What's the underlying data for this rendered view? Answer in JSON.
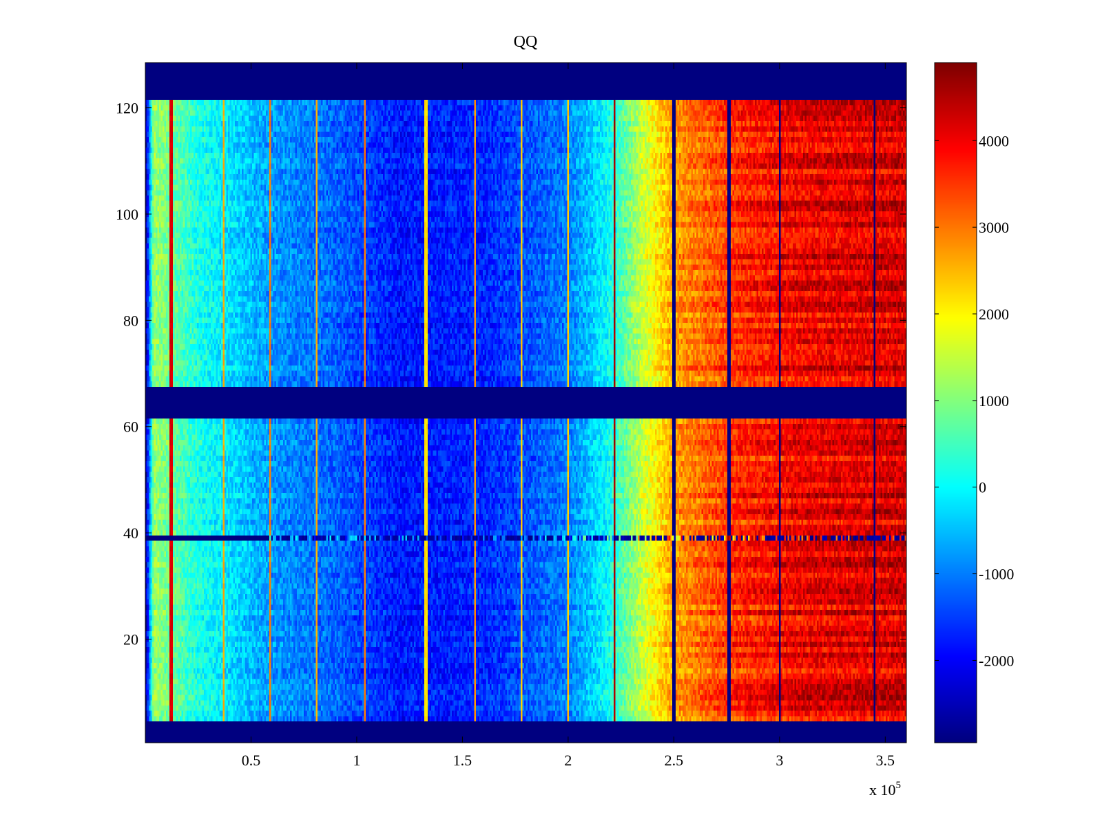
{
  "chart_data": {
    "type": "heatmap",
    "title": "QQ",
    "xlabel": "",
    "ylabel": "",
    "xlim": [
      0,
      360000
    ],
    "ylim": [
      1,
      128
    ],
    "x_multiplier_label": "x 10",
    "x_multiplier_exponent": "5",
    "x_ticks": [
      {
        "value": 50000,
        "label": "0.5"
      },
      {
        "value": 100000,
        "label": "1"
      },
      {
        "value": 150000,
        "label": "1.5"
      },
      {
        "value": 200000,
        "label": "2"
      },
      {
        "value": 250000,
        "label": "2.5"
      },
      {
        "value": 300000,
        "label": "3"
      },
      {
        "value": 350000,
        "label": "3.5"
      }
    ],
    "y_ticks": [
      {
        "value": 20,
        "label": "20"
      },
      {
        "value": 40,
        "label": "40"
      },
      {
        "value": 60,
        "label": "60"
      },
      {
        "value": 80,
        "label": "80"
      },
      {
        "value": 100,
        "label": "100"
      },
      {
        "value": 120,
        "label": "120"
      }
    ],
    "colorbar": {
      "colormap": "jet",
      "clim": [
        -2950,
        4900
      ],
      "ticks": [
        {
          "value": -2000,
          "label": "-2000"
        },
        {
          "value": -1000,
          "label": "-1000"
        },
        {
          "value": 0,
          "label": "0"
        },
        {
          "value": 1000,
          "label": "1000"
        },
        {
          "value": 2000,
          "label": "2000"
        },
        {
          "value": 3000,
          "label": "3000"
        },
        {
          "value": 4000,
          "label": "4000"
        }
      ]
    },
    "empty_channel_bands": [
      [
        1,
        4
      ],
      [
        62,
        67
      ],
      [
        122,
        128
      ]
    ],
    "dead_channel": {
      "channel": 39,
      "until_x": 58000
    },
    "column_profile": [
      {
        "x": 0,
        "value": -2900
      },
      {
        "x": 4000,
        "value": 1200
      },
      {
        "x": 25000,
        "value": 200
      },
      {
        "x": 60000,
        "value": -800
      },
      {
        "x": 90000,
        "value": -1200
      },
      {
        "x": 120000,
        "value": -1800
      },
      {
        "x": 160000,
        "value": -1700
      },
      {
        "x": 200000,
        "value": -1000
      },
      {
        "x": 220000,
        "value": 100
      },
      {
        "x": 235000,
        "value": 1500
      },
      {
        "x": 250000,
        "value": 2700
      },
      {
        "x": 280000,
        "value": 3600
      },
      {
        "x": 310000,
        "value": 4000
      },
      {
        "x": 360000,
        "value": 4200
      }
    ],
    "vertical_lines": [
      {
        "x": 12000,
        "value": 4200
      },
      {
        "x": 37000,
        "value": 2600
      },
      {
        "x": 59000,
        "value": 3000
      },
      {
        "x": 81000,
        "value": 2600
      },
      {
        "x": 104000,
        "value": 3000
      },
      {
        "x": 133000,
        "value": 2200
      },
      {
        "x": 156000,
        "value": 2800
      },
      {
        "x": 178000,
        "value": 2400
      },
      {
        "x": 200000,
        "value": 2400
      },
      {
        "x": 222000,
        "value": 4600
      },
      {
        "x": 250000,
        "value": -2950
      },
      {
        "x": 276000,
        "value": -2950
      },
      {
        "x": 300000,
        "value": -2950
      },
      {
        "x": 345000,
        "value": -2950
      }
    ]
  }
}
